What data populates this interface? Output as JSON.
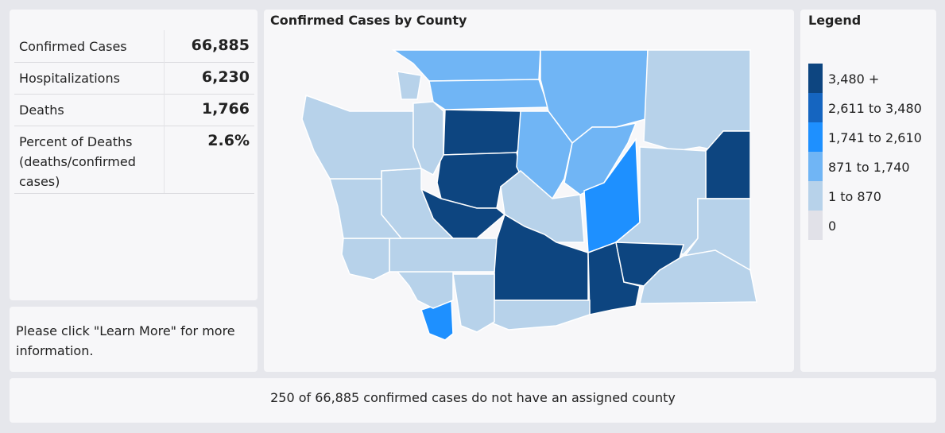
{
  "stats": {
    "rows": [
      {
        "label": "Confirmed Cases",
        "value": "66,885"
      },
      {
        "label": "Hospitalizations",
        "value": "6,230"
      },
      {
        "label": "Deaths",
        "value": "1,766"
      },
      {
        "label": "Percent of Deaths (deaths/confirmed cases)",
        "value": "2.6%"
      }
    ]
  },
  "note": "Please click \"Learn More\" for more information.",
  "map": {
    "title": "Confirmed Cases by County"
  },
  "legend": {
    "title": "Legend",
    "items": [
      {
        "label": "3,480 +",
        "color": "#0d4580"
      },
      {
        "label": "2,611 to 3,480",
        "color": "#1565c0"
      },
      {
        "label": "1,741 to 2,610",
        "color": "#1e90ff"
      },
      {
        "label": "871 to 1,740",
        "color": "#70b5f5"
      },
      {
        "label": "1 to 870",
        "color": "#b7d2ea"
      },
      {
        "label": "0",
        "color": "#e1e1e8"
      }
    ]
  },
  "footer": "250 of 66,885 confirmed cases do not have an assigned county"
}
